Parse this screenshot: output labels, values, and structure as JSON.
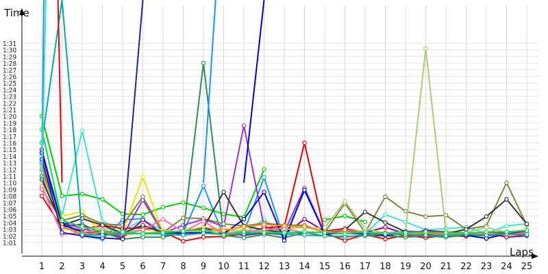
{
  "chart_data": {
    "type": "line",
    "title": "",
    "ylabel": "Time",
    "xlabel": "Laps",
    "grid": true,
    "legend": "none",
    "x": [
      1,
      2,
      3,
      4,
      5,
      6,
      7,
      8,
      9,
      10,
      11,
      12,
      13,
      14,
      15,
      16,
      17,
      18,
      19,
      20,
      21,
      22,
      23,
      24,
      25
    ],
    "xticks": [
      "1",
      "2",
      "3",
      "4",
      "5",
      "6",
      "7",
      "8",
      "9",
      "10",
      "11",
      "12",
      "13",
      "14",
      "15",
      "16",
      "17",
      "18",
      "19",
      "20",
      "21",
      "22",
      "23",
      "24",
      "25"
    ],
    "yticks": [
      "1:01",
      "1:02",
      "1:03",
      "1:04",
      "1:05",
      "1:06",
      "1:07",
      "1:08",
      "1:09",
      "1:10",
      "1:11",
      "1:12",
      "1:13",
      "1:14",
      "1:15",
      "1:16",
      "1:17",
      "1:18",
      "1:19",
      "1:20",
      "1:21",
      "1:22",
      "1:23",
      "1:24",
      "1:25",
      "1:26",
      "1:27",
      "1:28",
      "1:29",
      "1:30",
      "1:31"
    ],
    "ylim_seconds": [
      60,
      92
    ],
    "series": [
      {
        "color": "#00cc00",
        "values": [
          80,
          68,
          68.3,
          67.5,
          65.3,
          65.2,
          66.3,
          67,
          66.2,
          65.3,
          64.8,
          72,
          null,
          null,
          64.4,
          65,
          64.1,
          null,
          null,
          null,
          null,
          null,
          null,
          null,
          null
        ]
      },
      {
        "color": "#1e90ff",
        "values": [
          73,
          64.5,
          62,
          61.5,
          64.4,
          64.6,
          62,
          62.5,
          69.5,
          62,
          62.5,
          70.8,
          61.5,
          null,
          null,
          null,
          null,
          null,
          null,
          null,
          null,
          null,
          null,
          null,
          null
        ]
      },
      {
        "color": "#40e0d0",
        "values": [
          74,
          65,
          77.8,
          64.2,
          62.8,
          64.4,
          62.8,
          62.3,
          63,
          62.6,
          62.3,
          64.5,
          61.8,
          68.8,
          62.4,
          62.9,
          62.3,
          65.2,
          64.1,
          62.9,
          63.1,
          63.3,
          62.4,
          63.5,
          63.8
        ]
      },
      {
        "color": "#8b008b",
        "values": [
          75,
          63.5,
          63.7,
          62.4,
          61.7,
          64.4,
          62.3,
          62.7,
          63.2,
          62.4,
          62.1,
          62.4,
          62.2,
          64.5,
          62.7,
          63.1,
          62.5,
          63.3,
          62.3,
          62.8,
          62.6,
          62.2,
          62.5,
          61.8,
          62.0
        ]
      },
      {
        "color": "#9932cc",
        "values": [
          71,
          64,
          63.1,
          62.3,
          62,
          67.4,
          62.4,
          63.6,
          64.5,
          63.4,
          78.6,
          63.4,
          62.6,
          69.2,
          62.4,
          62.8,
          62.4,
          62.4,
          62.7,
          62.6,
          62.4,
          62.5,
          62.4,
          62.4,
          62.4
        ]
      },
      {
        "color": "#e60000",
        "values": [
          68,
          63.2,
          62.9,
          63.6,
          63.1,
          63.2,
          62.6,
          61.2,
          61.8,
          61.9,
          62.3,
          63.2,
          63.4,
          76,
          62.4,
          61.3,
          62.2,
          61.5,
          62.1,
          61.7,
          62.1,
          61.9,
          62.4,
          62.5,
          62.6
        ]
      },
      {
        "color": "#e6e600",
        "values": [
          70,
          65,
          65.6,
          62.3,
          62.6,
          70.9,
          62.3,
          62.4,
          62.7,
          62.6,
          62.9,
          62.6,
          62.8,
          63.6,
          62.4,
          62.5,
          62.4,
          null,
          null,
          null,
          null,
          null,
          null,
          null,
          null
        ]
      },
      {
        "color": "#2e8b57",
        "values": [
          72,
          63.5,
          62.1,
          62.6,
          61.5,
          61.8,
          61.8,
          62.5,
          88,
          62.1,
          61.7,
          62.2,
          61.7,
          62.5,
          62.0,
          61.9,
          62.0,
          62.0,
          61.8,
          62.0,
          61.8,
          62.1,
          62.0,
          62.2,
          62.1
        ]
      },
      {
        "color": "#808040",
        "values": [
          69,
          64.3,
          65.1,
          63.8,
          63.6,
          67.9,
          62.5,
          64.7,
          64.6,
          63.8,
          63.5,
          63.9,
          63.6,
          63.6,
          62.5,
          66.9,
          62.5,
          67.9,
          65.7,
          64.9,
          65.1,
          63,
          63.5,
          70,
          63.6
        ]
      },
      {
        "color": "#aacc77",
        "values": [
          71.5,
          63.1,
          63.1,
          63.2,
          62.6,
          62.9,
          62.9,
          62.5,
          62.5,
          63.1,
          62.6,
          62.7,
          63.3,
          63.2,
          63.2,
          67.2,
          63.1,
          62.4,
          62.6,
          90.2,
          62.7,
          62.5,
          63.3,
          62.5,
          62.9
        ]
      },
      {
        "color": "#333333",
        "values": [
          70.5,
          63.6,
          64.6,
          63.6,
          62.4,
          63.6,
          62.5,
          62.7,
          63.2,
          68.6,
          63.5,
          62.9,
          62.5,
          62.5,
          62.5,
          62.9,
          65.6,
          64,
          62.6,
          62.5,
          62.3,
          63,
          64.9,
          67.5,
          63.8
        ]
      },
      {
        "color": "#0000cd",
        "values": [
          74.5,
          63.7,
          62.6,
          62.3,
          62.5,
          62.3,
          62.5,
          62.4,
          62.5,
          62.3,
          64.5,
          68.6,
          61.3,
          68.9,
          62.3,
          62.4,
          62.3,
          62.1,
          62.3,
          62.2,
          62.2,
          62.1,
          61.6,
          62.3,
          62.5
        ]
      },
      {
        "color": "#ff69b4",
        "values": [
          69.5,
          62.2,
          62.5,
          62.9,
          62.2,
          62.9,
          64.5,
          62.6,
          64.2,
          62.3,
          62.7,
          62.9,
          63.1,
          62.5,
          62.5,
          62.4,
          62.5,
          62.5,
          62.3,
          62.4,
          62.3,
          62.3,
          62.4,
          62.2,
          62.5
        ]
      },
      {
        "color": "#ff8c00",
        "values": [
          72.5,
          63.3,
          62.3,
          62.5,
          62.2,
          62.4,
          62.6,
          62.7,
          63.3,
          62.8,
          63.4,
          63.7,
          63.5,
          63.4,
          62.6,
          62.9,
          62.6,
          62.4,
          62.1,
          62.4,
          62.1,
          62.4,
          62.2,
          62.2,
          62.2
        ]
      },
      {
        "color": "#2020a0",
        "values": [
          73.5,
          62.5,
          62.0,
          61.7,
          61.5,
          100,
          null,
          null,
          null,
          null,
          null,
          null,
          null,
          null,
          null,
          null,
          null,
          null,
          null,
          null,
          null,
          null,
          null,
          null,
          null
        ]
      },
      {
        "color": "#00a8a8",
        "values": [
          76,
          100,
          62.2,
          62.1,
          62.4,
          62.3,
          62.3,
          62.1,
          62.4,
          62.2,
          62.3,
          62.5,
          62.3,
          62.1,
          62.0,
          61.8,
          62.2,
          62.3,
          62.2,
          62.1,
          62.0,
          62.2,
          62.1,
          62.3,
          62.2
        ]
      },
      {
        "color": "#00dd55",
        "values": [
          78,
          64.3,
          63.4,
          62.6,
          62.6,
          62.3,
          62.5,
          62.7,
          62.9,
          62.1,
          62.6,
          62.5,
          62.5,
          62.6,
          62.5,
          62.3,
          62.6,
          62.3,
          62.5,
          62.6,
          62.5,
          62.4,
          62.6,
          62.6,
          62.8
        ]
      }
    ],
    "spikes": [
      {
        "color": "#1e90ff",
        "from": 1,
        "to_x": 1.1
      },
      {
        "color": "#40e0d0",
        "from": 1,
        "to_x": 1.2
      },
      {
        "color": "#1e90ff",
        "from": 9,
        "to_x": 9.6
      },
      {
        "color": "#e60000",
        "from": 2,
        "to_x": 1.8
      },
      {
        "color": "#0000cd",
        "from": 11,
        "to_x": 12
      }
    ]
  }
}
